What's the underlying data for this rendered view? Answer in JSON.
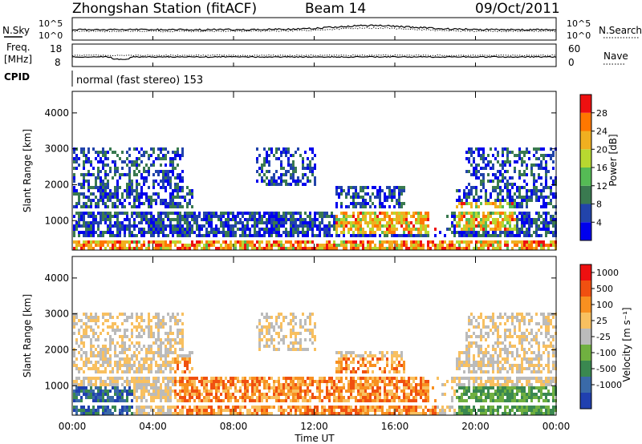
{
  "header": {
    "station_title": "Zhongshan Station (fitACF)",
    "beam_label": "Beam 14",
    "date": "09/Oct/2011"
  },
  "strips": {
    "nsky_label": "N.Sky",
    "nsky_ticks": [
      "10^5",
      "10^0"
    ],
    "nsearch_label": "N.Search",
    "nsearch_ticks": [
      "10^5",
      "10^0"
    ],
    "freq_label": "Freq.",
    "freq_unit": "[MHz]",
    "freq_ticks": [
      "18",
      "8"
    ],
    "nave_label": "Nave",
    "nave_ticks": [
      "60",
      "0"
    ],
    "cpid_label": "CPID",
    "cpid_text": "normal (fast stereo) 153"
  },
  "chart_data": [
    {
      "type": "heatmap",
      "panel": "power",
      "ylabel": "Slant Range [km]",
      "ylim": [
        180,
        4600
      ],
      "yticks": [
        "1000",
        "2000",
        "3000",
        "4000"
      ],
      "xlim": [
        0,
        24
      ],
      "colorbar": {
        "label": "Power [dB]",
        "ticks": [
          "28",
          "24",
          "20",
          "16",
          "12",
          "8",
          "4"
        ],
        "colors": [
          "#0000ee",
          "#2244aa",
          "#3a7a50",
          "#55bb55",
          "#b8d830",
          "#f0b020",
          "#ff7700",
          "#ee1010"
        ]
      }
    },
    {
      "type": "heatmap",
      "panel": "velocity",
      "ylabel": "Slant Range [km]",
      "ylim": [
        180,
        4600
      ],
      "yticks": [
        "1000",
        "2000",
        "3000",
        "4000"
      ],
      "xlim": [
        0,
        24
      ],
      "colorbar": {
        "label": "Velocity [m s⁻¹]",
        "ticks": [
          "1000",
          "500",
          "100",
          "25",
          "-25",
          "-100",
          "-500",
          "-1000"
        ],
        "colors": [
          "#2040b0",
          "#3a6aa8",
          "#3a8850",
          "#70b040",
          "#bbbbbb",
          "#f8c060",
          "#f89020",
          "#f05010",
          "#ee1010"
        ]
      }
    }
  ],
  "xaxis": {
    "ticks": [
      "00:00",
      "04:00",
      "08:00",
      "12:00",
      "16:00",
      "20:00",
      "00:00"
    ],
    "label": "Time UT"
  }
}
